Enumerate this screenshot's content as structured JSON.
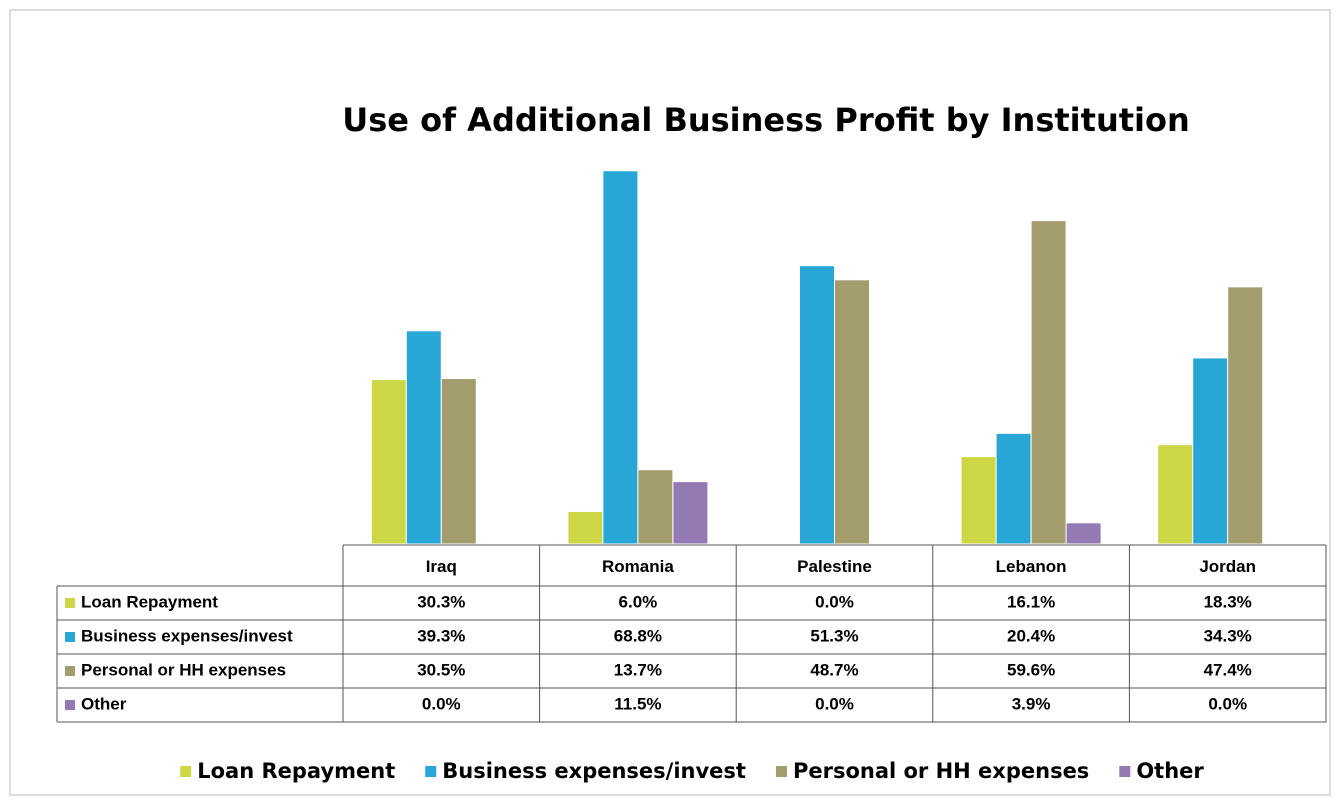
{
  "chart_data": {
    "type": "bar",
    "title": "Use of Additional Business Profit by Institution",
    "categories": [
      "Iraq",
      "Romania",
      "Palestine",
      "Lebanon",
      "Jordan"
    ],
    "series": [
      {
        "name": "Loan Repayment",
        "color": "#cdd645",
        "values": [
          30.3,
          6.0,
          0.0,
          16.1,
          18.3
        ],
        "value_labels": [
          "30.3%",
          "6.0%",
          "0.0%",
          "16.1%",
          "18.3%"
        ]
      },
      {
        "name": "Business expenses/invest",
        "color": "#28a7d6",
        "values": [
          39.3,
          68.8,
          51.3,
          20.4,
          34.3
        ],
        "value_labels": [
          "39.3%",
          "68.8%",
          "51.3%",
          "20.4%",
          "34.3%"
        ]
      },
      {
        "name": "Personal or HH expenses",
        "color": "#a39c6d",
        "values": [
          30.5,
          13.7,
          48.7,
          59.6,
          47.4
        ],
        "value_labels": [
          "30.5%",
          "13.7%",
          "48.7%",
          "59.6%",
          "47.4%"
        ]
      },
      {
        "name": "Other",
        "color": "#937ab3",
        "values": [
          0.0,
          11.5,
          0.0,
          3.9,
          0.0
        ],
        "value_labels": [
          "0.0%",
          "11.5%",
          "0.0%",
          "3.9%",
          "0.0%"
        ]
      }
    ],
    "ylim": [
      0,
      80
    ],
    "legend": "bottom"
  }
}
